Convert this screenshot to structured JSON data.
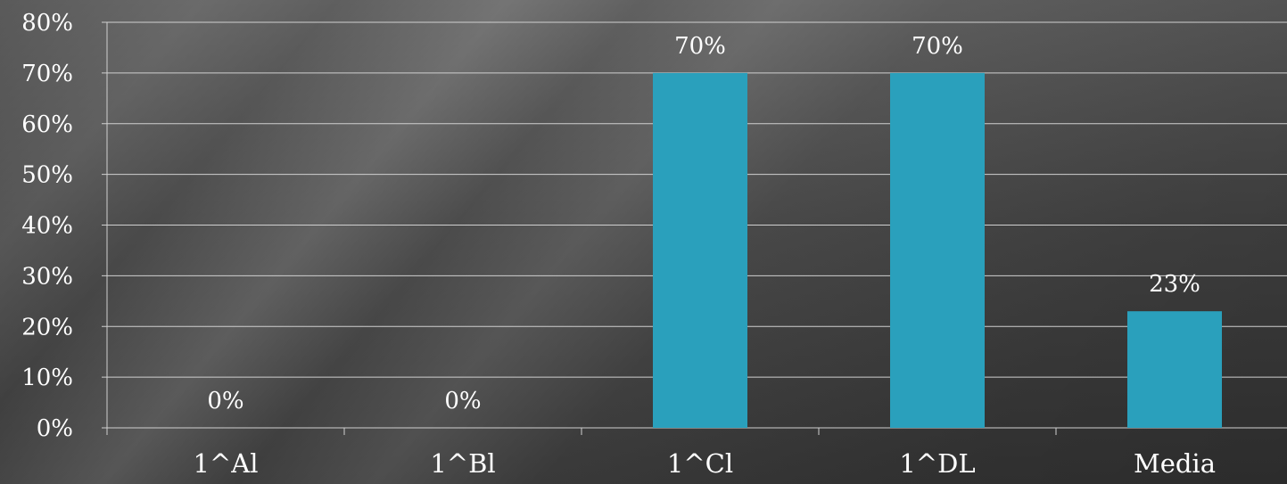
{
  "chart_data": {
    "type": "bar",
    "categories": [
      "1^Al",
      "1^Bl",
      "1^Cl",
      "1^DL",
      "Media"
    ],
    "values": [
      0,
      0,
      70,
      70,
      23
    ],
    "data_labels": [
      "0%",
      "0%",
      "70%",
      "70%",
      "23%"
    ],
    "y_ticks": [
      "0%",
      "10%",
      "20%",
      "30%",
      "40%",
      "50%",
      "60%",
      "70%",
      "80%"
    ],
    "ylim": [
      0,
      80
    ],
    "y_unit": "%",
    "grid": true,
    "legend": "none",
    "bar_color": "#2aa0bc",
    "grid_color": "#d0d0d0",
    "text_color": "#ffffff"
  }
}
